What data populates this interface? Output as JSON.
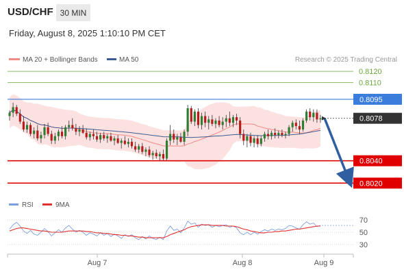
{
  "header": {
    "symbol": "USD/CHF",
    "timeframe": "30 MIN",
    "datetime": "Friday, August 8, 2025 1:10:10 PM CET"
  },
  "legend": {
    "ma20": "MA 20 + Bollinger Bands",
    "ma50": "MA 50",
    "credit": "Research © 2025 Trading Central",
    "rsi": "RSI",
    "ma9": "9MA"
  },
  "colors": {
    "ma20": "#f28b82",
    "ma50": "#3b5b8f",
    "bollinger_fill": "#fbdcdc",
    "candle_up": "#2e7d32",
    "candle_down": "#b71c1c",
    "support": "#e00000",
    "resistance": "#3b7ddd",
    "target": "#6aa83c",
    "current": "#333333",
    "arrow": "#2f5fa0",
    "rsi": "#7b9ee0",
    "rsi_ma": "#e03030"
  },
  "chart_data": [
    {
      "type": "candlestick",
      "title": "USD/CHF 30 MIN",
      "x_tick_labels": [
        "Aug 7",
        "Aug 8",
        "Aug 9"
      ],
      "ylim": [
        0.8011,
        0.8125
      ],
      "levels": [
        {
          "value": 0.812,
          "label": "0.8120",
          "kind": "target"
        },
        {
          "value": 0.811,
          "label": "0.8110",
          "kind": "target"
        },
        {
          "value": 0.8095,
          "label": "0.8095",
          "kind": "resistance"
        },
        {
          "value": 0.8078,
          "label": "0.8078",
          "kind": "current"
        },
        {
          "value": 0.804,
          "label": "0.8040",
          "kind": "support"
        },
        {
          "value": 0.802,
          "label": "0.8020",
          "kind": "support"
        }
      ],
      "forecast_arrow": {
        "from": 0.8078,
        "to": 0.802
      },
      "candles": [
        [
          0.808,
          0.8085,
          0.8076,
          0.8083
        ],
        [
          0.8083,
          0.8092,
          0.8079,
          0.8088
        ],
        [
          0.8088,
          0.809,
          0.808,
          0.8082
        ],
        [
          0.8082,
          0.8086,
          0.8073,
          0.8075
        ],
        [
          0.8075,
          0.808,
          0.8066,
          0.8068
        ],
        [
          0.8068,
          0.8075,
          0.8065,
          0.8072
        ],
        [
          0.8072,
          0.8074,
          0.8062,
          0.8064
        ],
        [
          0.8064,
          0.807,
          0.806,
          0.8067
        ],
        [
          0.8067,
          0.8072,
          0.8058,
          0.806
        ],
        [
          0.806,
          0.8066,
          0.8056,
          0.8063
        ],
        [
          0.8063,
          0.8073,
          0.806,
          0.807
        ],
        [
          0.807,
          0.8074,
          0.8062,
          0.8064
        ],
        [
          0.8064,
          0.8067,
          0.8055,
          0.8058
        ],
        [
          0.8058,
          0.8065,
          0.8055,
          0.8062
        ],
        [
          0.8062,
          0.8068,
          0.8058,
          0.8066
        ],
        [
          0.8066,
          0.8071,
          0.806,
          0.8062
        ],
        [
          0.8062,
          0.8072,
          0.8059,
          0.807
        ],
        [
          0.807,
          0.8076,
          0.8066,
          0.8072
        ],
        [
          0.8072,
          0.8078,
          0.8067,
          0.8069
        ],
        [
          0.8069,
          0.8073,
          0.8063,
          0.8066
        ],
        [
          0.8066,
          0.8071,
          0.8062,
          0.8068
        ],
        [
          0.8068,
          0.8072,
          0.8064,
          0.8065
        ],
        [
          0.8065,
          0.8069,
          0.8059,
          0.8061
        ],
        [
          0.8061,
          0.8066,
          0.8058,
          0.8064
        ],
        [
          0.8064,
          0.8068,
          0.8059,
          0.8062
        ],
        [
          0.8062,
          0.8066,
          0.8057,
          0.8059
        ],
        [
          0.8059,
          0.8065,
          0.8056,
          0.8063
        ],
        [
          0.8063,
          0.8066,
          0.8058,
          0.806
        ],
        [
          0.806,
          0.8064,
          0.8056,
          0.8062
        ],
        [
          0.8062,
          0.8065,
          0.8057,
          0.8058
        ],
        [
          0.8058,
          0.8062,
          0.8054,
          0.806
        ],
        [
          0.806,
          0.8063,
          0.8055,
          0.8056
        ],
        [
          0.8056,
          0.806,
          0.8051,
          0.8058
        ],
        [
          0.8058,
          0.8062,
          0.8054,
          0.8055
        ],
        [
          0.8055,
          0.806,
          0.8052,
          0.8057
        ],
        [
          0.8057,
          0.806,
          0.8051,
          0.8053
        ],
        [
          0.8053,
          0.8057,
          0.8048,
          0.805
        ],
        [
          0.805,
          0.8055,
          0.8047,
          0.8053
        ],
        [
          0.8053,
          0.8056,
          0.8046,
          0.8048
        ],
        [
          0.8048,
          0.8052,
          0.8044,
          0.805
        ],
        [
          0.805,
          0.8053,
          0.8043,
          0.8045
        ],
        [
          0.8045,
          0.8049,
          0.8041,
          0.8047
        ],
        [
          0.8047,
          0.805,
          0.8042,
          0.8044
        ],
        [
          0.8044,
          0.8048,
          0.804,
          0.8046
        ],
        [
          0.8046,
          0.805,
          0.804,
          0.8042
        ],
        [
          0.8042,
          0.806,
          0.804,
          0.8058
        ],
        [
          0.8058,
          0.8072,
          0.8054,
          0.8064
        ],
        [
          0.8064,
          0.8068,
          0.8056,
          0.8059
        ],
        [
          0.8059,
          0.8064,
          0.8054,
          0.8061
        ],
        [
          0.8061,
          0.8065,
          0.8056,
          0.8057
        ],
        [
          0.8057,
          0.8068,
          0.8054,
          0.8066
        ],
        [
          0.8066,
          0.809,
          0.8062,
          0.8087
        ],
        [
          0.8087,
          0.8089,
          0.8073,
          0.8075
        ],
        [
          0.8075,
          0.8086,
          0.8071,
          0.8084
        ],
        [
          0.8084,
          0.8087,
          0.8069,
          0.8072
        ],
        [
          0.8072,
          0.8083,
          0.8068,
          0.808
        ],
        [
          0.808,
          0.8084,
          0.807,
          0.8074
        ],
        [
          0.8074,
          0.808,
          0.8068,
          0.8077
        ],
        [
          0.8077,
          0.8081,
          0.8071,
          0.8073
        ],
        [
          0.8073,
          0.8078,
          0.8069,
          0.8076
        ],
        [
          0.8076,
          0.808,
          0.807,
          0.8072
        ],
        [
          0.8072,
          0.8079,
          0.8068,
          0.8075
        ],
        [
          0.8075,
          0.8081,
          0.807,
          0.8078
        ],
        [
          0.8078,
          0.8084,
          0.8071,
          0.8074
        ],
        [
          0.8074,
          0.8081,
          0.807,
          0.8079
        ],
        [
          0.8079,
          0.8082,
          0.8072,
          0.8076
        ],
        [
          0.8076,
          0.8079,
          0.806,
          0.8064
        ],
        [
          0.8064,
          0.8068,
          0.8054,
          0.8058
        ],
        [
          0.8058,
          0.8064,
          0.8052,
          0.8062
        ],
        [
          0.8062,
          0.8065,
          0.8053,
          0.8056
        ],
        [
          0.8056,
          0.8062,
          0.8052,
          0.806
        ],
        [
          0.806,
          0.8063,
          0.8052,
          0.8055
        ],
        [
          0.8055,
          0.8062,
          0.8053,
          0.806
        ],
        [
          0.806,
          0.8066,
          0.8057,
          0.8064
        ],
        [
          0.8064,
          0.8068,
          0.8059,
          0.8062
        ],
        [
          0.8062,
          0.8067,
          0.8059,
          0.8065
        ],
        [
          0.8065,
          0.8069,
          0.806,
          0.8063
        ],
        [
          0.8063,
          0.8067,
          0.806,
          0.8065
        ],
        [
          0.8065,
          0.8068,
          0.8061,
          0.8063
        ],
        [
          0.8063,
          0.8066,
          0.806,
          0.8064
        ],
        [
          0.8064,
          0.8072,
          0.8062,
          0.807
        ],
        [
          0.807,
          0.8076,
          0.8066,
          0.8074
        ],
        [
          0.8074,
          0.8077,
          0.8068,
          0.8071
        ],
        [
          0.8071,
          0.8076,
          0.8064,
          0.8068
        ],
        [
          0.8068,
          0.8078,
          0.8066,
          0.8076
        ],
        [
          0.8076,
          0.8086,
          0.8074,
          0.8084
        ],
        [
          0.8084,
          0.8087,
          0.8076,
          0.8079
        ],
        [
          0.8079,
          0.8086,
          0.8075,
          0.8083
        ],
        [
          0.8083,
          0.8086,
          0.8074,
          0.8077
        ],
        [
          0.8077,
          0.8081,
          0.8074,
          0.8078
        ]
      ]
    },
    {
      "type": "line",
      "title": "RSI",
      "ylim": [
        20,
        80
      ],
      "y_ticks": [
        70,
        50,
        30
      ],
      "series": [
        {
          "name": "RSI",
          "values": [
            55,
            62,
            66,
            60,
            52,
            48,
            53,
            47,
            45,
            50,
            56,
            51,
            44,
            49,
            54,
            50,
            57,
            61,
            55,
            50,
            53,
            50,
            45,
            49,
            47,
            44,
            49,
            45,
            48,
            43,
            47,
            44,
            40,
            46,
            43,
            46,
            41,
            38,
            43,
            39,
            44,
            40,
            38,
            42,
            38,
            52,
            60,
            53,
            55,
            49,
            57,
            68,
            63,
            65,
            58,
            63,
            61,
            62,
            58,
            61,
            59,
            61,
            62,
            58,
            60,
            57,
            49,
            46,
            50,
            46,
            50,
            47,
            51,
            54,
            52,
            55,
            53,
            55,
            54,
            56,
            61,
            60,
            57,
            55,
            62,
            67,
            63,
            65,
            59,
            61
          ]
        },
        {
          "name": "9MA",
          "values": [
            52,
            54,
            56,
            57,
            57,
            56,
            55,
            54,
            53,
            52,
            52,
            51,
            50,
            50,
            50,
            50,
            51,
            52,
            52,
            52,
            52,
            52,
            51,
            51,
            50,
            49,
            49,
            48,
            48,
            47,
            46,
            46,
            45,
            45,
            44,
            44,
            43,
            42,
            42,
            41,
            41,
            41,
            41,
            41,
            41,
            43,
            46,
            48,
            50,
            52,
            54,
            57,
            59,
            60,
            61,
            62,
            62,
            62,
            61,
            61,
            61,
            61,
            60,
            60,
            60,
            59,
            57,
            55,
            54,
            52,
            51,
            50,
            49,
            49,
            50,
            50,
            51,
            51,
            52,
            52,
            53,
            54,
            55,
            55,
            56,
            57,
            58,
            59,
            60,
            60
          ]
        }
      ]
    }
  ]
}
